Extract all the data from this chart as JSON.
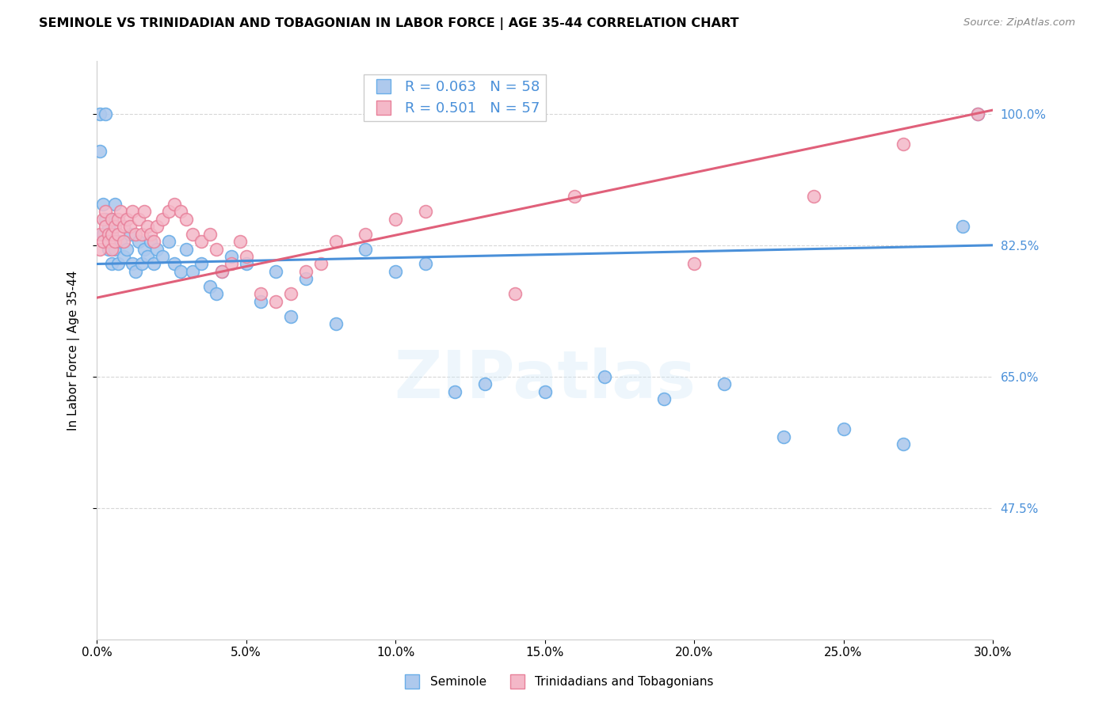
{
  "title": "SEMINOLE VS TRINIDADIAN AND TOBAGONIAN IN LABOR FORCE | AGE 35-44 CORRELATION CHART",
  "source_text": "Source: ZipAtlas.com",
  "ylabel": "In Labor Force | Age 35-44",
  "xlim": [
    0.0,
    0.3
  ],
  "ylim": [
    0.3,
    1.07
  ],
  "xtick_labels": [
    "0.0%",
    "5.0%",
    "10.0%",
    "15.0%",
    "20.0%",
    "25.0%",
    "30.0%"
  ],
  "xtick_vals": [
    0.0,
    0.05,
    0.1,
    0.15,
    0.2,
    0.25,
    0.3
  ],
  "ytick_labels": [
    "47.5%",
    "65.0%",
    "82.5%",
    "100.0%"
  ],
  "ytick_vals": [
    0.475,
    0.65,
    0.825,
    1.0
  ],
  "blue_fill": "#aec9ed",
  "blue_edge": "#6aaee8",
  "pink_fill": "#f4b8c8",
  "pink_edge": "#e8809a",
  "blue_line_color": "#4a90d9",
  "pink_line_color": "#e0607a",
  "blue_R": "0.063",
  "blue_N": "58",
  "pink_R": "0.501",
  "pink_N": "57",
  "legend_label_blue": "Seminole",
  "legend_label_pink": "Trinidadians and Tobagonians",
  "watermark": "ZIPatlas",
  "seminole_x": [
    0.001,
    0.001,
    0.002,
    0.002,
    0.003,
    0.003,
    0.004,
    0.004,
    0.005,
    0.005,
    0.005,
    0.006,
    0.006,
    0.007,
    0.008,
    0.009,
    0.01,
    0.011,
    0.012,
    0.013,
    0.014,
    0.015,
    0.016,
    0.017,
    0.018,
    0.019,
    0.02,
    0.022,
    0.024,
    0.026,
    0.028,
    0.03,
    0.032,
    0.035,
    0.038,
    0.04,
    0.042,
    0.045,
    0.05,
    0.055,
    0.06,
    0.065,
    0.07,
    0.08,
    0.09,
    0.1,
    0.11,
    0.12,
    0.13,
    0.15,
    0.17,
    0.19,
    0.21,
    0.23,
    0.25,
    0.27,
    0.29,
    0.295
  ],
  "seminole_y": [
    0.95,
    1.0,
    0.88,
    0.84,
    0.86,
    1.0,
    0.85,
    0.82,
    0.86,
    0.84,
    0.8,
    0.88,
    0.82,
    0.8,
    0.83,
    0.81,
    0.82,
    0.84,
    0.8,
    0.79,
    0.83,
    0.8,
    0.82,
    0.81,
    0.83,
    0.8,
    0.82,
    0.81,
    0.83,
    0.8,
    0.79,
    0.82,
    0.79,
    0.8,
    0.77,
    0.76,
    0.79,
    0.81,
    0.8,
    0.75,
    0.79,
    0.73,
    0.78,
    0.72,
    0.82,
    0.79,
    0.8,
    0.63,
    0.64,
    0.63,
    0.65,
    0.62,
    0.64,
    0.57,
    0.58,
    0.56,
    0.85,
    1.0
  ],
  "trini_x": [
    0.001,
    0.001,
    0.002,
    0.002,
    0.003,
    0.003,
    0.004,
    0.004,
    0.005,
    0.005,
    0.005,
    0.006,
    0.006,
    0.007,
    0.007,
    0.008,
    0.009,
    0.009,
    0.01,
    0.011,
    0.012,
    0.013,
    0.014,
    0.015,
    0.016,
    0.017,
    0.018,
    0.019,
    0.02,
    0.022,
    0.024,
    0.026,
    0.028,
    0.03,
    0.032,
    0.035,
    0.038,
    0.04,
    0.042,
    0.045,
    0.048,
    0.05,
    0.055,
    0.06,
    0.065,
    0.07,
    0.075,
    0.08,
    0.09,
    0.1,
    0.11,
    0.14,
    0.16,
    0.2,
    0.24,
    0.27,
    0.295
  ],
  "trini_y": [
    0.84,
    0.82,
    0.86,
    0.83,
    0.87,
    0.85,
    0.84,
    0.83,
    0.86,
    0.84,
    0.82,
    0.85,
    0.83,
    0.86,
    0.84,
    0.87,
    0.85,
    0.83,
    0.86,
    0.85,
    0.87,
    0.84,
    0.86,
    0.84,
    0.87,
    0.85,
    0.84,
    0.83,
    0.85,
    0.86,
    0.87,
    0.88,
    0.87,
    0.86,
    0.84,
    0.83,
    0.84,
    0.82,
    0.79,
    0.8,
    0.83,
    0.81,
    0.76,
    0.75,
    0.76,
    0.79,
    0.8,
    0.83,
    0.84,
    0.86,
    0.87,
    0.76,
    0.89,
    0.8,
    0.89,
    0.96,
    1.0
  ]
}
